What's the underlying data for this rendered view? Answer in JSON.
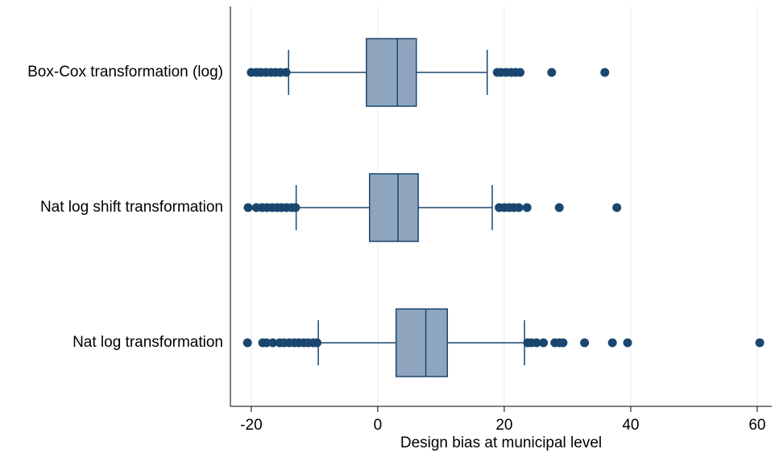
{
  "chart_data": {
    "type": "box",
    "xlabel": "Design bias at municipal level",
    "xlim": [
      -23.3,
      62.3
    ],
    "xticks": [
      -20,
      0,
      20,
      40,
      60
    ],
    "grid": true,
    "box_color": "#8ea5bd",
    "line_color": "#1a476f",
    "series": [
      {
        "name": "Box-Cox transformation (log)",
        "whisker_low": -14.1,
        "q1": -1.8,
        "median": 3.1,
        "q3": 6.1,
        "whisker_high": 17.3,
        "outliers": [
          -20,
          -19.2,
          -18.5,
          -17.7,
          -16.9,
          -16.2,
          -15.4,
          -14.5,
          18.9,
          19.5,
          20.3,
          21.1,
          21.8,
          22.5,
          27.5,
          35.9
        ]
      },
      {
        "name": "Nat log shift transformation",
        "whisker_low": -12.9,
        "q1": -1.3,
        "median": 3.2,
        "q3": 6.4,
        "whisker_high": 18.1,
        "outliers": [
          -20.5,
          -19.2,
          -18.3,
          -17.5,
          -16.7,
          -15.9,
          -15.2,
          -14.4,
          -13.6,
          -13.0,
          19.2,
          20,
          20.8,
          21.5,
          22.3,
          23.6,
          28.7,
          37.8
        ]
      },
      {
        "name": "Nat log transformation",
        "whisker_low": -9.4,
        "q1": 2.9,
        "median": 7.6,
        "q3": 11.0,
        "whisker_high": 23.2,
        "outliers": [
          -20.6,
          -18.2,
          -17.6,
          -16.6,
          -15.5,
          -14.8,
          -14.0,
          -13.2,
          -12.5,
          -11.7,
          -11.0,
          -10.2,
          -9.6,
          23.7,
          24.3,
          25.1,
          26.2,
          28.0,
          28.7,
          29.3,
          32.7,
          37.1,
          39.5,
          60.4
        ]
      }
    ]
  }
}
